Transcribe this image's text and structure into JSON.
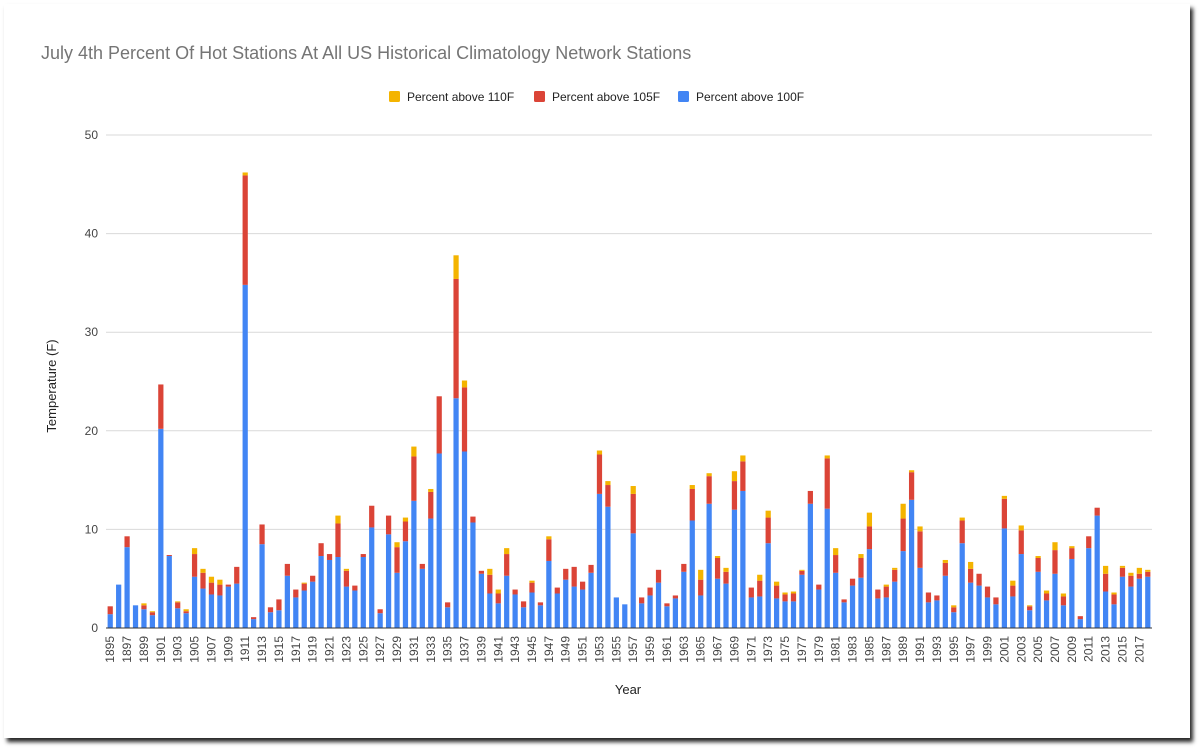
{
  "chart_data": {
    "type": "bar",
    "stacked": true,
    "title": "July 4th Percent Of Hot Stations At All US Historical Climatology Network Stations",
    "xlabel": "Year",
    "ylabel": "Temperature (F)",
    "ylim": [
      0,
      50
    ],
    "yticks": [
      0,
      10,
      20,
      30,
      40,
      50
    ],
    "grid": true,
    "legend_position": "top",
    "xtick_labels": [
      "1895",
      "1897",
      "1899",
      "1901",
      "1903",
      "1905",
      "1907",
      "1909",
      "1911",
      "1913",
      "1915",
      "1917",
      "1919",
      "1921",
      "1923",
      "1925",
      "1927",
      "1929",
      "1931",
      "1933",
      "1935",
      "1937",
      "1939",
      "1941",
      "1943",
      "1945",
      "1947",
      "1949",
      "1951",
      "1953",
      "1955",
      "1957",
      "1959",
      "1961",
      "1963",
      "1965",
      "1967",
      "1969",
      "1971",
      "1973",
      "1975",
      "1977",
      "1979",
      "1981",
      "1983",
      "1985",
      "1987",
      "1989",
      "1991",
      "1993",
      "1995",
      "1997",
      "1999",
      "2001",
      "2003",
      "2005",
      "2007",
      "2009",
      "2011",
      "2013",
      "2015",
      "2017"
    ],
    "categories": [
      1895,
      1896,
      1897,
      1898,
      1899,
      1900,
      1901,
      1902,
      1903,
      1904,
      1905,
      1906,
      1907,
      1908,
      1909,
      1910,
      1911,
      1912,
      1913,
      1914,
      1915,
      1916,
      1917,
      1918,
      1919,
      1920,
      1921,
      1922,
      1923,
      1924,
      1925,
      1926,
      1927,
      1928,
      1929,
      1930,
      1931,
      1932,
      1933,
      1934,
      1935,
      1936,
      1937,
      1938,
      1939,
      1940,
      1941,
      1942,
      1943,
      1944,
      1945,
      1946,
      1947,
      1948,
      1949,
      1950,
      1951,
      1952,
      1953,
      1954,
      1955,
      1956,
      1957,
      1958,
      1959,
      1960,
      1961,
      1962,
      1963,
      1964,
      1965,
      1966,
      1967,
      1968,
      1969,
      1970,
      1971,
      1972,
      1973,
      1974,
      1975,
      1976,
      1977,
      1978,
      1979,
      1980,
      1981,
      1982,
      1983,
      1984,
      1985,
      1986,
      1987,
      1988,
      1989,
      1990,
      1991,
      1992,
      1993,
      1994,
      1995,
      1996,
      1997,
      1998,
      1999,
      2000,
      2001,
      2002,
      2003,
      2004,
      2005,
      2006,
      2007,
      2008,
      2009,
      2010,
      2011,
      2012,
      2013,
      2014,
      2015,
      2016,
      2017,
      2018
    ],
    "series": [
      {
        "name": "Percent above 100F",
        "color": "#4285f4",
        "values": [
          1.4,
          4.4,
          8.2,
          2.3,
          1.9,
          1.3,
          20.2,
          7.3,
          2.0,
          1.5,
          5.2,
          4.0,
          3.4,
          3.3,
          4.2,
          4.5,
          34.8,
          0.9,
          8.5,
          1.6,
          1.8,
          5.3,
          3.1,
          3.8,
          4.7,
          7.3,
          6.9,
          7.2,
          4.2,
          3.8,
          7.2,
          10.2,
          1.5,
          9.5,
          5.6,
          8.8,
          12.9,
          6.0,
          11.1,
          17.7,
          2.1,
          23.3,
          17.9,
          10.7,
          5.5,
          3.5,
          2.5,
          5.3,
          3.4,
          2.1,
          3.6,
          2.3,
          6.8,
          3.5,
          4.9,
          4.2,
          3.9,
          5.6,
          13.6,
          12.3,
          3.1,
          2.4,
          9.6,
          2.5,
          3.3,
          4.6,
          2.2,
          3.0,
          5.7,
          10.9,
          3.3,
          12.6,
          5.0,
          4.5,
          12.0,
          13.9,
          3.1,
          3.2,
          8.6,
          3.0,
          2.7,
          2.7,
          5.4,
          12.6,
          3.9,
          12.1,
          5.6,
          2.6,
          4.3,
          5.1,
          8.0,
          3.0,
          3.1,
          4.7,
          7.8,
          13.0,
          6.1,
          2.6,
          2.8,
          5.3,
          1.6,
          8.6,
          4.6,
          4.3,
          3.1,
          2.4,
          10.1,
          3.2,
          7.5,
          1.8,
          5.7,
          2.8,
          5.5,
          2.3,
          7.0,
          0.9,
          8.1,
          11.4,
          3.7,
          2.4,
          5.2,
          4.2,
          5.0,
          5.2
        ],
        "labels": []
      },
      {
        "name": "Percent above 105F",
        "color": "#db4437",
        "values": [
          0.8,
          0,
          1.1,
          0,
          0.4,
          0.3,
          4.5,
          0.1,
          0.6,
          0.2,
          2.3,
          1.6,
          1.2,
          1.1,
          0.2,
          1.7,
          11.1,
          0.2,
          2.0,
          0.5,
          1.1,
          1.2,
          0.8,
          0.7,
          0.6,
          1.3,
          0.6,
          3.4,
          1.6,
          0.5,
          0.3,
          2.2,
          0.4,
          1.9,
          2.6,
          2.0,
          4.5,
          0.5,
          2.7,
          5.8,
          0.5,
          12.1,
          6.5,
          0.6,
          0.3,
          1.9,
          1.0,
          2.2,
          0.5,
          0.6,
          1.0,
          0.3,
          2.2,
          0.6,
          1.1,
          2.0,
          0.8,
          0.8,
          4.0,
          2.2,
          0,
          0,
          4.0,
          0.6,
          0.8,
          1.3,
          0.3,
          0.3,
          0.8,
          3.2,
          1.6,
          2.8,
          2.1,
          1.2,
          2.9,
          3.0,
          1.0,
          1.6,
          2.6,
          1.3,
          0.7,
          0.8,
          0.4,
          1.3,
          0.5,
          5.1,
          1.8,
          0.3,
          0.7,
          2.0,
          2.3,
          0.9,
          1.1,
          1.2,
          3.3,
          2.8,
          3.7,
          1.0,
          0.5,
          1.3,
          0.5,
          2.3,
          1.4,
          1.2,
          1.1,
          0.7,
          3.0,
          1.1,
          2.4,
          0.4,
          1.4,
          0.7,
          2.4,
          0.9,
          1.1,
          0.3,
          1.2,
          0.8,
          1.8,
          1.0,
          0.9,
          1.1,
          0.5,
          0.5
        ],
        "labels": []
      },
      {
        "name": "Percent above 110F",
        "color": "#f4b400",
        "values": [
          0,
          0,
          0,
          0,
          0.2,
          0.1,
          0,
          0,
          0.1,
          0.2,
          0.6,
          0.4,
          0.6,
          0.5,
          0,
          0,
          0.3,
          0,
          0,
          0,
          0,
          0,
          0,
          0.1,
          0,
          0,
          0,
          0.8,
          0.2,
          0,
          0,
          0,
          0,
          0,
          0.5,
          0.4,
          1.0,
          0,
          0.3,
          0,
          0,
          2.4,
          0.7,
          0,
          0,
          0.6,
          0.4,
          0.6,
          0,
          0,
          0.2,
          0,
          0.3,
          0,
          0,
          0,
          0,
          0,
          0.4,
          0.4,
          0,
          0,
          0.8,
          0,
          0,
          0,
          0,
          0,
          0,
          0.4,
          1.0,
          0.3,
          0.2,
          0.4,
          1.0,
          0.6,
          0,
          0.6,
          0.7,
          0.4,
          0.2,
          0.2,
          0.1,
          0,
          0,
          0.3,
          0.7,
          0,
          0,
          0.4,
          1.4,
          0,
          0.2,
          0.2,
          1.5,
          0.2,
          0.5,
          0,
          0,
          0.3,
          0.2,
          0.3,
          0.7,
          0,
          0,
          0,
          0.3,
          0.5,
          0.5,
          0.1,
          0.2,
          0.3,
          0.8,
          0.3,
          0.2,
          0,
          0,
          0,
          0.8,
          0.2,
          0.2,
          0.3,
          0.6,
          0.2
        ]
      }
    ]
  }
}
